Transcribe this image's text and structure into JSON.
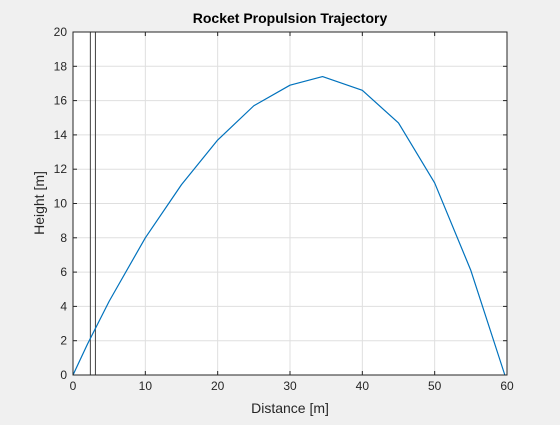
{
  "chart_data": {
    "type": "line",
    "title": "Rocket Propulsion Trajectory",
    "xlabel": "Distance [m]",
    "ylabel": "Height [m]",
    "xlim": [
      0,
      60
    ],
    "ylim": [
      0,
      20
    ],
    "xticks": [
      0,
      10,
      20,
      30,
      40,
      50,
      60
    ],
    "yticks": [
      0,
      2,
      4,
      6,
      8,
      10,
      12,
      14,
      16,
      18,
      20
    ],
    "grid": true,
    "line_color": "#0072bd",
    "vlines_color": "#404040",
    "vlines_x": [
      2.4,
      3.1
    ],
    "series": [
      {
        "x": [
          0,
          2,
          5,
          10,
          15,
          20,
          25,
          30,
          34.5,
          40,
          45,
          50,
          55,
          59.7
        ],
        "values": [
          0,
          1.8,
          4.3,
          8.0,
          11.1,
          13.7,
          15.7,
          16.9,
          17.4,
          16.6,
          14.7,
          11.2,
          6.1,
          0
        ]
      }
    ]
  }
}
